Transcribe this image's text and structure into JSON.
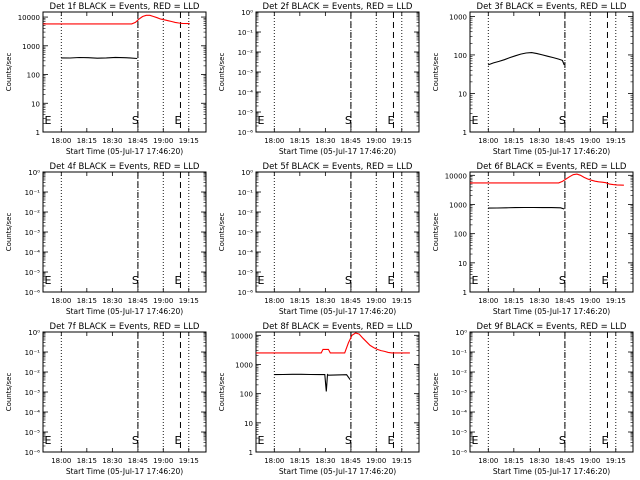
{
  "chart_data": [
    {
      "type": "line",
      "title": "Det 1f BLACK = Events, RED = LLD",
      "ylabel": "Counts/sec",
      "xlabel": "Start Time (05-Jul-17 17:46:20)",
      "x_tick_labels": [
        "18:00",
        "18:15",
        "18:30",
        "18:45",
        "19:00",
        "19:15"
      ],
      "x_tick_values": [
        10.1,
        24.2,
        38.3,
        52.4,
        66.4,
        80.5
      ],
      "xlim": [
        0,
        90
      ],
      "y_scale": "log",
      "y_tick_labels": [
        "1",
        "10",
        "100",
        "1000",
        "10000"
      ],
      "ylim": [
        1,
        15000
      ],
      "markers": [
        {
          "label": "E",
          "x": 0.3,
          "style": "dotted"
        },
        {
          "label": "S",
          "x": 52.4,
          "style": "dashed"
        },
        {
          "label": "E",
          "x": 75.9,
          "style": "dashed"
        }
      ],
      "dotted_lines_x": [
        10.1,
        52.4,
        66.4,
        80.5
      ],
      "series": [
        {
          "name": "Events",
          "color": "#000000",
          "x": [
            10,
            15,
            20,
            25,
            30,
            35,
            40,
            45,
            48,
            52
          ],
          "y": [
            380,
            375,
            390,
            385,
            370,
            380,
            395,
            385,
            380,
            360
          ]
        },
        {
          "name": "LLD",
          "color": "#ff0000",
          "x": [
            0,
            10,
            20,
            30,
            40,
            49,
            51,
            53,
            55,
            57,
            59,
            61,
            63,
            65,
            67,
            69,
            71,
            73,
            75,
            77,
            81
          ],
          "y": [
            5800,
            5800,
            5800,
            5800,
            5800,
            5800,
            6500,
            8500,
            10500,
            11500,
            11500,
            10500,
            9500,
            8500,
            8000,
            7500,
            7000,
            6500,
            6200,
            6000,
            5900
          ]
        }
      ]
    },
    {
      "type": "line",
      "title": "Det 2f BLACK = Events, RED = LLD",
      "ylabel": "Counts/sec",
      "xlabel": "Start Time (05-Jul-17 17:46:20)",
      "x_tick_labels": [
        "18:00",
        "18:15",
        "18:30",
        "18:45",
        "19:00",
        "19:15"
      ],
      "x_tick_values": [
        10.1,
        24.2,
        38.3,
        52.4,
        66.4,
        80.5
      ],
      "xlim": [
        0,
        90
      ],
      "y_scale": "log",
      "y_tick_labels": [
        "10⁰",
        "10⁻¹",
        "10⁻²",
        "10⁻³",
        "10⁻⁴",
        "10⁻⁵",
        "10⁻⁶"
      ],
      "ylim": [
        1e-06,
        1
      ],
      "markers": [
        {
          "label": "E",
          "x": 0.3,
          "style": "dotted"
        },
        {
          "label": "S",
          "x": 52.4,
          "style": "dashed"
        },
        {
          "label": "E",
          "x": 75.9,
          "style": "dashed"
        }
      ],
      "dotted_lines_x": [
        10.1,
        52.4,
        66.4,
        80.5
      ],
      "series": []
    },
    {
      "type": "line",
      "title": "Det 3f BLACK = Events, RED = LLD",
      "ylabel": "Counts/sec",
      "xlabel": "Start Time (05-Jul-17 17:46:20)",
      "x_tick_labels": [
        "18:00",
        "18:15",
        "18:30",
        "18:45",
        "19:00",
        "19:15"
      ],
      "x_tick_values": [
        10.1,
        24.2,
        38.3,
        52.4,
        66.4,
        80.5
      ],
      "xlim": [
        0,
        90
      ],
      "y_scale": "log",
      "y_tick_labels": [
        "1",
        "10",
        "100",
        "1000"
      ],
      "ylim": [
        1,
        1300
      ],
      "markers": [
        {
          "label": "E",
          "x": 0.3,
          "style": "dotted"
        },
        {
          "label": "S",
          "x": 52.4,
          "style": "dashed"
        },
        {
          "label": "E",
          "x": 75.9,
          "style": "dashed"
        }
      ],
      "dotted_lines_x": [
        10.1,
        52.4,
        66.4,
        80.5
      ],
      "series": [
        {
          "name": "Events",
          "color": "#000000",
          "x": [
            10,
            13,
            16,
            19,
            22,
            25,
            28,
            31,
            34,
            37,
            40,
            43,
            46,
            49,
            51,
            52
          ],
          "y": [
            55,
            62,
            68,
            75,
            85,
            95,
            105,
            112,
            115,
            108,
            100,
            92,
            85,
            78,
            72,
            55
          ]
        }
      ]
    },
    {
      "type": "line",
      "title": "Det 4f BLACK = Events, RED = LLD",
      "ylabel": "Counts/sec",
      "xlabel": "Start Time (05-Jul-17 17:46:20)",
      "x_tick_labels": [
        "18:00",
        "18:15",
        "18:30",
        "18:45",
        "19:00",
        "19:15"
      ],
      "x_tick_values": [
        10.1,
        24.2,
        38.3,
        52.4,
        66.4,
        80.5
      ],
      "xlim": [
        0,
        90
      ],
      "y_scale": "log",
      "y_tick_labels": [
        "10⁰",
        "10⁻¹",
        "10⁻²",
        "10⁻³",
        "10⁻⁴",
        "10⁻⁵",
        "10⁻⁶"
      ],
      "ylim": [
        1e-06,
        1
      ],
      "markers": [
        {
          "label": "E",
          "x": 0.3,
          "style": "dotted"
        },
        {
          "label": "S",
          "x": 52.4,
          "style": "dashed"
        },
        {
          "label": "E",
          "x": 75.9,
          "style": "dashed"
        }
      ],
      "dotted_lines_x": [
        10.1,
        52.4,
        66.4,
        80.5
      ],
      "series": []
    },
    {
      "type": "line",
      "title": "Det 5f BLACK = Events, RED = LLD",
      "ylabel": "Counts/sec",
      "xlabel": "Start Time (05-Jul-17 17:46:20)",
      "x_tick_labels": [
        "18:00",
        "18:15",
        "18:30",
        "18:45",
        "19:00",
        "19:15"
      ],
      "x_tick_values": [
        10.1,
        24.2,
        38.3,
        52.4,
        66.4,
        80.5
      ],
      "xlim": [
        0,
        90
      ],
      "y_scale": "log",
      "y_tick_labels": [
        "10⁰",
        "10⁻¹",
        "10⁻²",
        "10⁻³",
        "10⁻⁴",
        "10⁻⁵",
        "10⁻⁶"
      ],
      "ylim": [
        1e-06,
        1
      ],
      "markers": [
        {
          "label": "E",
          "x": 0.3,
          "style": "dotted"
        },
        {
          "label": "S",
          "x": 52.4,
          "style": "dashed"
        },
        {
          "label": "E",
          "x": 75.9,
          "style": "dashed"
        }
      ],
      "dotted_lines_x": [
        10.1,
        52.4,
        66.4,
        80.5
      ],
      "series": []
    },
    {
      "type": "line",
      "title": "Det 6f BLACK = Events, RED = LLD",
      "ylabel": "Counts/sec",
      "xlabel": "Start Time (05-Jul-17 17:46:20)",
      "x_tick_labels": [
        "18:00",
        "18:15",
        "18:30",
        "18:45",
        "19:00",
        "19:15"
      ],
      "x_tick_values": [
        10.1,
        24.2,
        38.3,
        52.4,
        66.4,
        80.5
      ],
      "xlim": [
        0,
        90
      ],
      "y_scale": "log",
      "y_tick_labels": [
        "1",
        "10",
        "100",
        "1000",
        "10000"
      ],
      "ylim": [
        1,
        13000
      ],
      "markers": [
        {
          "label": "E",
          "x": 0.3,
          "style": "dotted"
        },
        {
          "label": "S",
          "x": 52.4,
          "style": "dashed"
        },
        {
          "label": "E",
          "x": 75.9,
          "style": "dashed"
        }
      ],
      "dotted_lines_x": [
        10.1,
        52.4,
        66.4,
        80.5
      ],
      "series": [
        {
          "name": "Events",
          "color": "#000000",
          "x": [
            10,
            15,
            20,
            25,
            30,
            35,
            40,
            45,
            50,
            52
          ],
          "y": [
            750,
            760,
            770,
            780,
            790,
            790,
            785,
            780,
            770,
            700
          ]
        },
        {
          "name": "LLD",
          "color": "#ff0000",
          "x": [
            0,
            10,
            20,
            30,
            40,
            49,
            51,
            53,
            55,
            57,
            59,
            61,
            63,
            65,
            67,
            69,
            71,
            73,
            75,
            77,
            79,
            81,
            85
          ],
          "y": [
            5500,
            5500,
            5500,
            5500,
            5500,
            5500,
            6200,
            7500,
            9000,
            10500,
            11000,
            10000,
            8500,
            7500,
            6800,
            6300,
            6000,
            5800,
            5600,
            5000,
            4800,
            4700,
            4600
          ]
        }
      ]
    },
    {
      "type": "line",
      "title": "Det 7f BLACK = Events, RED = LLD",
      "ylabel": "Counts/sec",
      "xlabel": "Start Time (05-Jul-17 17:46:20)",
      "x_tick_labels": [
        "18:00",
        "18:15",
        "18:30",
        "18:45",
        "19:00",
        "19:15"
      ],
      "x_tick_values": [
        10.1,
        24.2,
        38.3,
        52.4,
        66.4,
        80.5
      ],
      "xlim": [
        0,
        90
      ],
      "y_scale": "log",
      "y_tick_labels": [
        "10⁰",
        "10⁻¹",
        "10⁻²",
        "10⁻³",
        "10⁻⁴",
        "10⁻⁵",
        "10⁻⁶"
      ],
      "ylim": [
        1e-06,
        1
      ],
      "markers": [
        {
          "label": "E",
          "x": 0.3,
          "style": "dotted"
        },
        {
          "label": "S",
          "x": 52.4,
          "style": "dashed"
        },
        {
          "label": "E",
          "x": 75.9,
          "style": "dashed"
        }
      ],
      "dotted_lines_x": [
        10.1,
        52.4,
        66.4,
        80.5
      ],
      "series": []
    },
    {
      "type": "line",
      "title": "Det 8f BLACK = Events, RED = LLD",
      "ylabel": "Counts/sec",
      "xlabel": "Start Time (05-Jul-17 17:46:20)",
      "x_tick_labels": [
        "18:00",
        "18:15",
        "18:30",
        "18:45",
        "19:00",
        "19:15"
      ],
      "x_tick_values": [
        10.1,
        24.2,
        38.3,
        52.4,
        66.4,
        80.5
      ],
      "xlim": [
        0,
        90
      ],
      "y_scale": "log",
      "y_tick_labels": [
        "1",
        "10",
        "100",
        "1000",
        "10000"
      ],
      "ylim": [
        1,
        13000
      ],
      "markers": [
        {
          "label": "E",
          "x": 0.3,
          "style": "dotted"
        },
        {
          "label": "S",
          "x": 52.4,
          "style": "dashed"
        },
        {
          "label": "E",
          "x": 75.9,
          "style": "dashed"
        }
      ],
      "dotted_lines_x": [
        10.1,
        52.4,
        66.4,
        80.5
      ],
      "series": [
        {
          "name": "Events",
          "color": "#000000",
          "x": [
            10,
            15,
            20,
            25,
            30,
            35,
            38,
            38.8,
            39.5,
            40,
            45,
            50,
            52
          ],
          "y": [
            450,
            455,
            460,
            460,
            455,
            450,
            450,
            120,
            450,
            430,
            440,
            445,
            300
          ]
        },
        {
          "name": "LLD",
          "color": "#ff0000",
          "x": [
            0,
            10,
            20,
            30,
            36,
            37,
            40,
            41,
            42,
            49,
            51,
            53,
            55,
            57,
            59,
            61,
            63,
            65,
            67,
            69,
            71,
            73,
            75,
            80,
            85
          ],
          "y": [
            2500,
            2500,
            2500,
            2500,
            2500,
            3300,
            3300,
            2500,
            2500,
            2500,
            5500,
            10000,
            12000,
            11000,
            8000,
            6000,
            4500,
            3800,
            3300,
            3000,
            2800,
            2600,
            2500,
            2500,
            2500
          ]
        }
      ]
    },
    {
      "type": "line",
      "title": "Det 9f BLACK = Events, RED = LLD",
      "ylabel": "Counts/sec",
      "xlabel": "Start Time (05-Jul-17 17:46:20)",
      "x_tick_labels": [
        "18:00",
        "18:15",
        "18:30",
        "18:45",
        "19:00",
        "19:15"
      ],
      "x_tick_values": [
        10.1,
        24.2,
        38.3,
        52.4,
        66.4,
        80.5
      ],
      "xlim": [
        0,
        90
      ],
      "y_scale": "log",
      "y_tick_labels": [
        "10⁰",
        "10⁻¹",
        "10⁻²",
        "10⁻³",
        "10⁻⁴",
        "10⁻⁵",
        "10⁻⁶"
      ],
      "ylim": [
        1e-06,
        1
      ],
      "markers": [
        {
          "label": "E",
          "x": 0.3,
          "style": "dotted"
        },
        {
          "label": "S",
          "x": 52.4,
          "style": "dashed"
        },
        {
          "label": "E",
          "x": 75.9,
          "style": "dashed"
        }
      ],
      "dotted_lines_x": [
        10.1,
        52.4,
        66.4,
        80.5
      ],
      "series": []
    }
  ]
}
